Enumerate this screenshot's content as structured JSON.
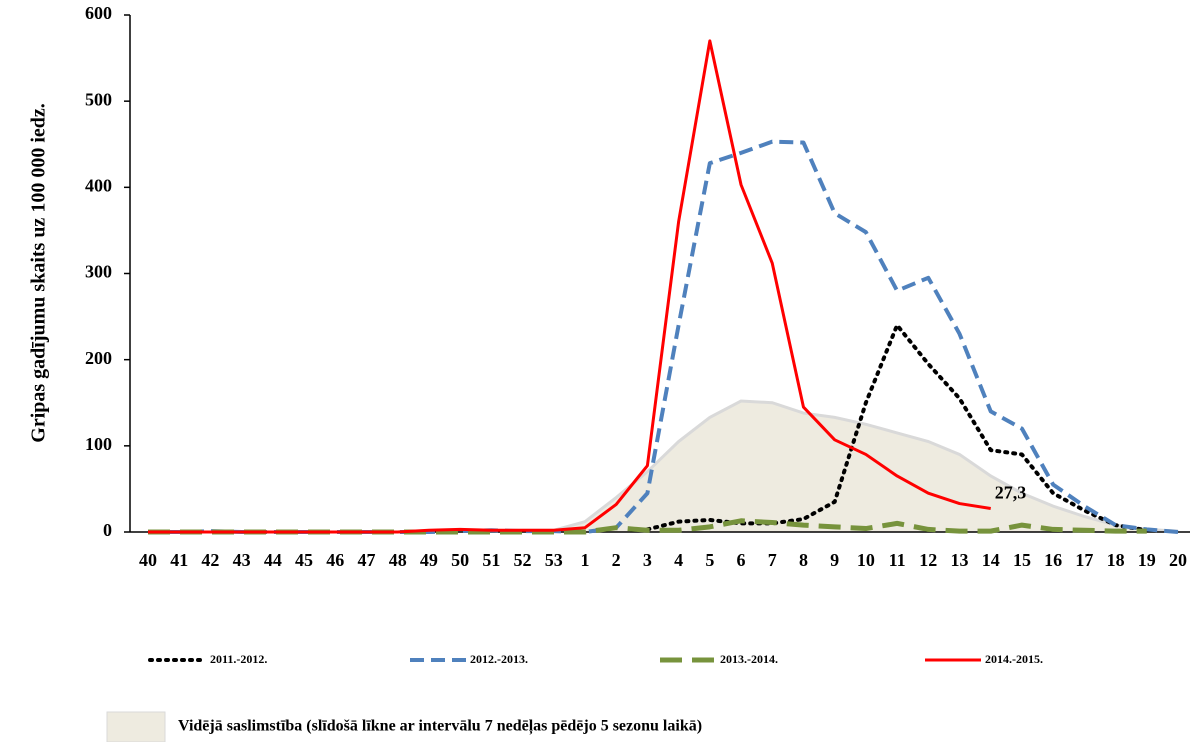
{
  "chart_data": {
    "type": "line",
    "y_label": "Gripas gadījumu skaits uz 100 000 iedz.",
    "categories": [
      "40",
      "41",
      "42",
      "43",
      "44",
      "45",
      "46",
      "47",
      "48",
      "49",
      "50",
      "51",
      "52",
      "53",
      "1",
      "2",
      "3",
      "4",
      "5",
      "6",
      "7",
      "8",
      "9",
      "10",
      "11",
      "12",
      "13",
      "14",
      "15",
      "16",
      "17",
      "18",
      "19",
      "20"
    ],
    "ylim": [
      0,
      600
    ],
    "yticks": [
      0,
      100,
      200,
      300,
      400,
      500,
      600
    ],
    "area": {
      "name": "Vidējā saslimstība (slīdošā līkne ar intervālu 7 nedēļas pēdējo 5 sezonu laikā)",
      "color": "#eeebe0",
      "edge": "#d9d9d9",
      "values": [
        0,
        0,
        0,
        0,
        0,
        0,
        0,
        0,
        0,
        1,
        1,
        1,
        2,
        2,
        12,
        40,
        70,
        105,
        133,
        152,
        150,
        138,
        133,
        125,
        115,
        105,
        90,
        65,
        45,
        30,
        18,
        8,
        3,
        1
      ]
    },
    "series": [
      {
        "name": "2011.-2012.",
        "color": "#000000",
        "style": "dotted",
        "values": [
          null,
          null,
          null,
          null,
          null,
          null,
          null,
          null,
          null,
          null,
          null,
          null,
          null,
          null,
          null,
          null,
          3,
          12,
          14,
          10,
          10,
          15,
          35,
          150,
          240,
          195,
          155,
          95,
          90,
          45,
          25,
          8,
          2,
          null
        ]
      },
      {
        "name": "2012.-2013.",
        "color": "#4f81bd",
        "style": "dashed",
        "values": [
          0,
          0,
          1,
          0,
          0,
          0,
          0,
          0,
          0,
          0,
          1,
          2,
          1,
          1,
          0,
          5,
          45,
          240,
          428,
          440,
          453,
          452,
          370,
          348,
          280,
          295,
          230,
          140,
          120,
          55,
          30,
          8,
          3,
          0
        ]
      },
      {
        "name": "2013.-2014.",
        "color": "#77933c",
        "style": "longdash",
        "values": [
          0,
          0,
          0,
          0,
          0,
          0,
          0,
          0,
          0,
          0,
          0,
          0,
          0,
          0,
          0,
          5,
          2,
          2,
          6,
          13,
          11,
          8,
          6,
          4,
          10,
          3,
          1,
          1,
          8,
          3,
          2,
          1,
          1,
          null
        ]
      },
      {
        "name": "2014.-2015.",
        "color": "#ff0000",
        "style": "solid",
        "values": [
          0,
          0,
          0,
          0,
          0,
          0,
          0,
          0,
          0,
          2,
          3,
          2,
          2,
          2,
          5,
          32,
          77,
          360,
          570,
          403,
          312,
          145,
          107,
          90,
          65,
          45,
          33,
          27.3,
          null,
          null,
          null,
          null,
          null,
          null
        ],
        "value_labels": [
          null,
          null,
          null,
          null,
          null,
          null,
          null,
          null,
          null,
          null,
          null,
          null,
          null,
          null,
          null,
          null,
          null,
          null,
          null,
          null,
          null,
          null,
          null,
          null,
          null,
          null,
          null,
          "27,3",
          null,
          null,
          null,
          null,
          null,
          null
        ]
      }
    ]
  }
}
